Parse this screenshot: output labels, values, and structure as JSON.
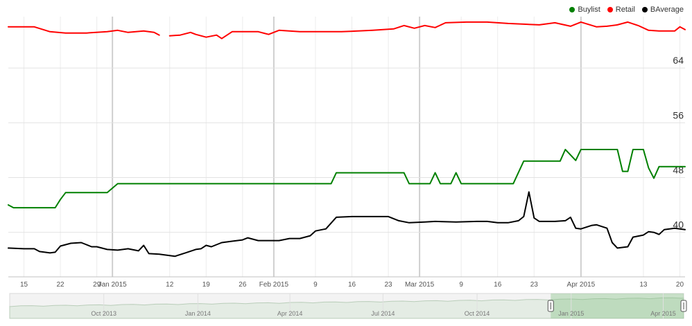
{
  "chart_data": {
    "type": "line",
    "legend": {
      "placement": "top-right",
      "entries": [
        {
          "name": "Buylist",
          "color": "#008000"
        },
        {
          "name": "Retail",
          "color": "#ff0000"
        },
        {
          "name": "BAverage",
          "color": "#000000"
        }
      ]
    },
    "y_ticks": [
      40,
      48,
      56,
      64
    ],
    "ylim": [
      33.5,
      71.5
    ],
    "x_range": [
      "2014-12-12",
      "2015-04-21"
    ],
    "x_tick_labels": [
      {
        "date": "2014-12-15",
        "label": "15"
      },
      {
        "date": "2014-12-22",
        "label": "22"
      },
      {
        "date": "2014-12-29",
        "label": "29"
      },
      {
        "date": "2015-01-01",
        "label": "Jan 2015"
      },
      {
        "date": "2015-01-12",
        "label": "12"
      },
      {
        "date": "2015-01-19",
        "label": "19"
      },
      {
        "date": "2015-01-26",
        "label": "26"
      },
      {
        "date": "2015-02-01",
        "label": "Feb 2015"
      },
      {
        "date": "2015-02-09",
        "label": "9"
      },
      {
        "date": "2015-02-16",
        "label": "16"
      },
      {
        "date": "2015-02-23",
        "label": "23"
      },
      {
        "date": "2015-03-01",
        "label": "Mar 2015"
      },
      {
        "date": "2015-03-09",
        "label": "9"
      },
      {
        "date": "2015-03-16",
        "label": "16"
      },
      {
        "date": "2015-03-23",
        "label": "23"
      },
      {
        "date": "2015-04-01",
        "label": "Apr 2015"
      },
      {
        "date": "2015-04-13",
        "label": "13"
      },
      {
        "date": "2015-04-20",
        "label": "20"
      }
    ],
    "month_gridlines": [
      "2015-01-01",
      "2015-02-01",
      "2015-03-01",
      "2015-04-01"
    ],
    "grid": true,
    "series": [
      {
        "name": "Retail",
        "color": "#ff0000",
        "points": [
          [
            "2014-12-12",
            70
          ],
          [
            "2014-12-17",
            70
          ],
          [
            "2014-12-20",
            69.3
          ],
          [
            "2014-12-23",
            69.1
          ],
          [
            "2014-12-27",
            69.1
          ],
          [
            "2014-12-31",
            69.3
          ],
          [
            "2015-01-02",
            69.5
          ],
          [
            "2015-01-04",
            69.2
          ],
          [
            "2015-01-07",
            69.4
          ],
          [
            "2015-01-09",
            69.2
          ],
          [
            "2015-01-10",
            68.8
          ],
          null,
          [
            "2015-01-12",
            68.7
          ],
          [
            "2015-01-14",
            68.8
          ],
          [
            "2015-01-16",
            69.2
          ],
          [
            "2015-01-17",
            68.9
          ],
          [
            "2015-01-19",
            68.5
          ],
          [
            "2015-01-21",
            68.8
          ],
          [
            "2015-01-22",
            68.3
          ],
          [
            "2015-01-24",
            69.3
          ],
          [
            "2015-01-29",
            69.3
          ],
          [
            "2015-01-31",
            68.9
          ],
          [
            "2015-02-02",
            69.5
          ],
          [
            "2015-02-06",
            69.3
          ],
          [
            "2015-02-10",
            69.3
          ],
          [
            "2015-02-14",
            69.3
          ],
          [
            "2015-02-20",
            69.5
          ],
          [
            "2015-02-24",
            69.7
          ],
          [
            "2015-02-26",
            70.2
          ],
          [
            "2015-02-28",
            69.8
          ],
          [
            "2015-03-02",
            70.2
          ],
          [
            "2015-03-04",
            69.9
          ],
          [
            "2015-03-06",
            70.6
          ],
          [
            "2015-03-10",
            70.7
          ],
          [
            "2015-03-14",
            70.7
          ],
          [
            "2015-03-18",
            70.5
          ],
          [
            "2015-03-21",
            70.4
          ],
          [
            "2015-03-24",
            70.3
          ],
          [
            "2015-03-27",
            70.6
          ],
          [
            "2015-03-30",
            70.1
          ],
          [
            "2015-04-01",
            70.7
          ],
          [
            "2015-04-04",
            70
          ],
          [
            "2015-04-06",
            70.1
          ],
          [
            "2015-04-08",
            70.3
          ],
          [
            "2015-04-10",
            70.7
          ],
          [
            "2015-04-12",
            70.2
          ],
          [
            "2015-04-14",
            69.5
          ],
          [
            "2015-04-16",
            69.4
          ],
          [
            "2015-04-19",
            69.4
          ],
          [
            "2015-04-20",
            70
          ],
          [
            "2015-04-21",
            69.6
          ]
        ]
      },
      {
        "name": "Buylist",
        "color": "#008000",
        "points": [
          [
            "2014-12-12",
            44
          ],
          [
            "2014-12-13",
            43.6
          ],
          [
            "2014-12-21",
            43.6
          ],
          [
            "2014-12-22",
            44.8
          ],
          [
            "2014-12-23",
            45.8
          ],
          [
            "2014-12-31",
            45.8
          ],
          [
            "2015-01-02",
            47.1
          ],
          [
            "2015-02-12",
            47.1
          ],
          [
            "2015-02-13",
            48.7
          ],
          [
            "2015-02-26",
            48.7
          ],
          [
            "2015-02-27",
            47.1
          ],
          [
            "2015-03-03",
            47.1
          ],
          [
            "2015-03-04",
            48.7
          ],
          [
            "2015-03-05",
            47.1
          ],
          [
            "2015-03-07",
            47.1
          ],
          [
            "2015-03-08",
            48.7
          ],
          [
            "2015-03-09",
            47.1
          ],
          [
            "2015-03-19",
            47.1
          ],
          [
            "2015-03-21",
            50.4
          ],
          [
            "2015-03-28",
            50.4
          ],
          [
            "2015-03-29",
            52.1
          ],
          [
            "2015-03-31",
            50.5
          ],
          [
            "2015-04-01",
            52.1
          ],
          [
            "2015-04-08",
            52.1
          ],
          [
            "2015-04-09",
            48.9
          ],
          [
            "2015-04-10",
            48.9
          ],
          [
            "2015-04-11",
            52.1
          ],
          [
            "2015-04-13",
            52.1
          ],
          [
            "2015-04-14",
            49.4
          ],
          [
            "2015-04-15",
            47.9
          ],
          [
            "2015-04-16",
            49.6
          ],
          [
            "2015-04-21",
            49.6
          ]
        ]
      },
      {
        "name": "BAverage",
        "color": "#000000",
        "points": [
          [
            "2014-12-12",
            37.7
          ],
          [
            "2014-12-15",
            37.6
          ],
          [
            "2014-12-17",
            37.6
          ],
          [
            "2014-12-18",
            37.2
          ],
          [
            "2014-12-20",
            37
          ],
          [
            "2014-12-21",
            37.1
          ],
          [
            "2014-12-22",
            38
          ],
          [
            "2014-12-24",
            38.4
          ],
          [
            "2014-12-26",
            38.5
          ],
          [
            "2014-12-28",
            37.9
          ],
          [
            "2014-12-29",
            37.9
          ],
          [
            "2014-12-31",
            37.5
          ],
          [
            "2015-01-02",
            37.4
          ],
          [
            "2015-01-04",
            37.6
          ],
          [
            "2015-01-06",
            37.3
          ],
          [
            "2015-01-07",
            38.1
          ],
          [
            "2015-01-08",
            36.9
          ],
          [
            "2015-01-10",
            36.8
          ],
          [
            "2015-01-13",
            36.5
          ],
          [
            "2015-01-15",
            37
          ],
          [
            "2015-01-17",
            37.5
          ],
          [
            "2015-01-18",
            37.6
          ],
          [
            "2015-01-19",
            38.1
          ],
          [
            "2015-01-20",
            37.9
          ],
          [
            "2015-01-22",
            38.5
          ],
          [
            "2015-01-24",
            38.7
          ],
          [
            "2015-01-26",
            38.9
          ],
          [
            "2015-01-27",
            39.2
          ],
          [
            "2015-01-29",
            38.8
          ],
          [
            "2015-01-31",
            38.8
          ],
          [
            "2015-02-02",
            38.8
          ],
          [
            "2015-02-04",
            39.1
          ],
          [
            "2015-02-06",
            39.1
          ],
          [
            "2015-02-08",
            39.5
          ],
          [
            "2015-02-09",
            40.2
          ],
          [
            "2015-02-11",
            40.5
          ],
          [
            "2015-02-13",
            42.2
          ],
          [
            "2015-02-16",
            42.3
          ],
          [
            "2015-02-20",
            42.3
          ],
          [
            "2015-02-23",
            42.3
          ],
          [
            "2015-02-25",
            41.7
          ],
          [
            "2015-02-27",
            41.4
          ],
          [
            "2015-03-02",
            41.5
          ],
          [
            "2015-03-04",
            41.6
          ],
          [
            "2015-03-08",
            41.5
          ],
          [
            "2015-03-12",
            41.6
          ],
          [
            "2015-03-14",
            41.6
          ],
          [
            "2015-03-16",
            41.4
          ],
          [
            "2015-03-18",
            41.4
          ],
          [
            "2015-03-20",
            41.7
          ],
          [
            "2015-03-21",
            42.3
          ],
          [
            "2015-03-22",
            45.9
          ],
          [
            "2015-03-23",
            42.1
          ],
          [
            "2015-03-24",
            41.6
          ],
          [
            "2015-03-27",
            41.6
          ],
          [
            "2015-03-29",
            41.7
          ],
          [
            "2015-03-30",
            42.2
          ],
          [
            "2015-03-31",
            40.6
          ],
          [
            "2015-04-01",
            40.5
          ],
          [
            "2015-04-03",
            41
          ],
          [
            "2015-04-04",
            41.1
          ],
          [
            "2015-04-06",
            40.6
          ],
          [
            "2015-04-07",
            38.5
          ],
          [
            "2015-04-08",
            37.7
          ],
          [
            "2015-04-10",
            37.9
          ],
          [
            "2015-04-11",
            39.3
          ],
          [
            "2015-04-13",
            39.6
          ],
          [
            "2015-04-14",
            40.1
          ],
          [
            "2015-04-15",
            40
          ],
          [
            "2015-04-16",
            39.7
          ],
          [
            "2015-04-17",
            40.4
          ],
          [
            "2015-04-19",
            40.6
          ],
          [
            "2015-04-21",
            40.4
          ]
        ]
      }
    ],
    "navigator": {
      "tick_labels": [
        "Oct 2013",
        "Jan 2014",
        "Apr 2014",
        "Jul 2014",
        "Oct 2014",
        "Jan 2015",
        "Apr 2015"
      ],
      "selected_from": "2014-12-12",
      "selected_to": "2015-04-21"
    }
  }
}
